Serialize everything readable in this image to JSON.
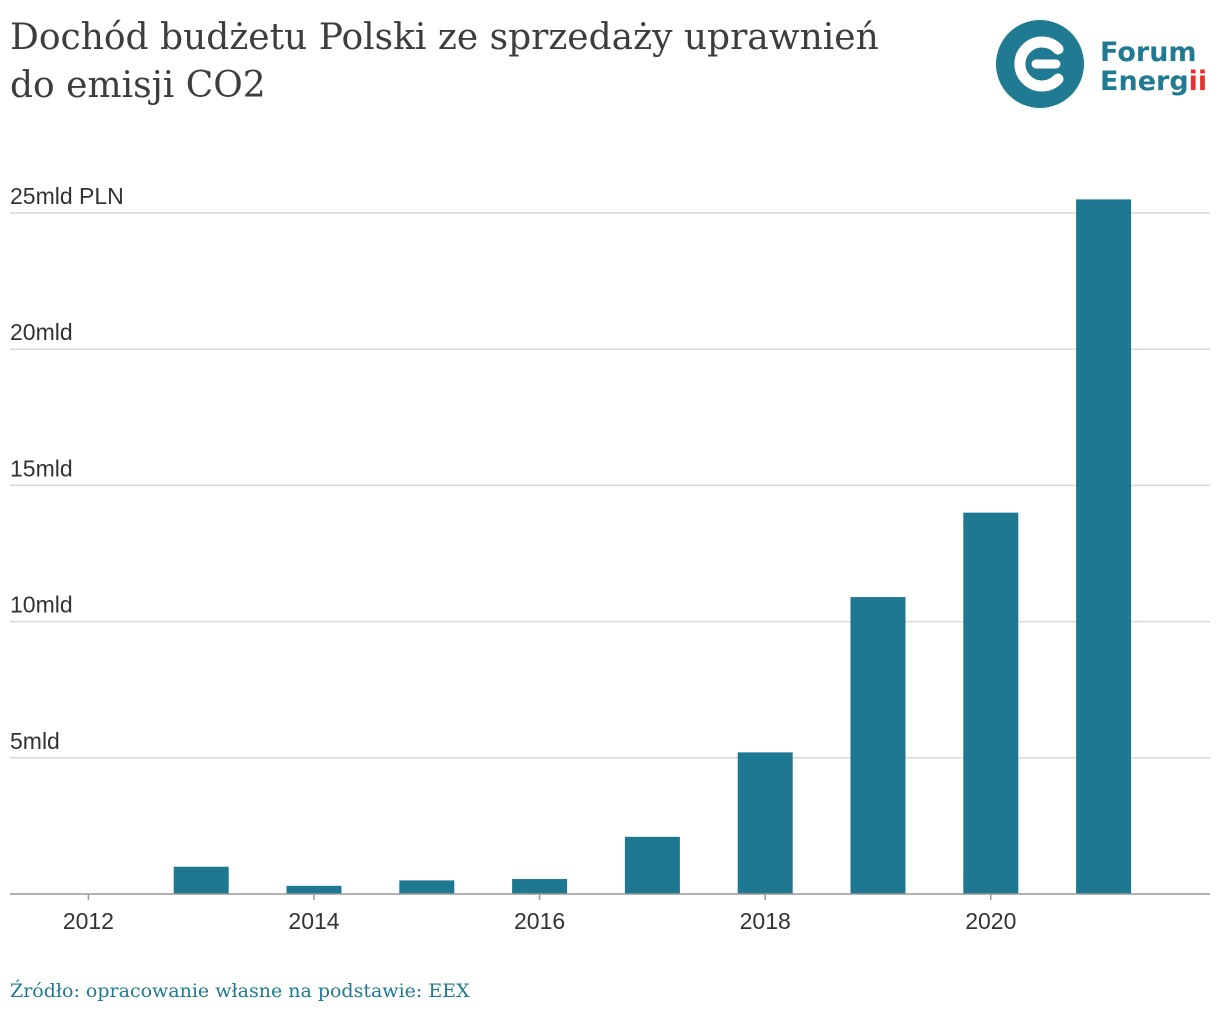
{
  "title": {
    "line1": "Dochód budżetu Polski ze sprzedaży uprawnień",
    "line2": "do emisji CO2"
  },
  "logo": {
    "icon": "forum-energii-logo-icon",
    "line1": "Forum",
    "line2": "Energii",
    "color": "#1f7a92",
    "accent": "#e5312f"
  },
  "source": "Źródło: opracowanie własne na podstawie: EEX",
  "chart_data": {
    "type": "bar",
    "title": "Dochód budżetu Polski ze sprzedaży uprawnień do emisji CO2",
    "categories": [
      "2012",
      "2013",
      "2014",
      "2015",
      "2016",
      "2017",
      "2018",
      "2019",
      "2020",
      "2021"
    ],
    "values": [
      0,
      1.0,
      0.3,
      0.5,
      0.55,
      2.1,
      5.2,
      10.9,
      14.0,
      25.5
    ],
    "unit": "mld PLN",
    "x_tick_labels": [
      "2012",
      "2014",
      "2016",
      "2018",
      "2020"
    ],
    "y_ticks": [
      {
        "value": 5,
        "label": "5mld"
      },
      {
        "value": 10,
        "label": "10mld"
      },
      {
        "value": 15,
        "label": "15mld"
      },
      {
        "value": 20,
        "label": "20mld"
      },
      {
        "value": 25,
        "label": "25mld PLN"
      }
    ],
    "ylim": [
      0,
      25
    ],
    "grid": true,
    "bar_color": "#1e7891",
    "grid_color": "#d9d9d9",
    "axis_color": "#999999",
    "xlabel": "",
    "ylabel": ""
  }
}
